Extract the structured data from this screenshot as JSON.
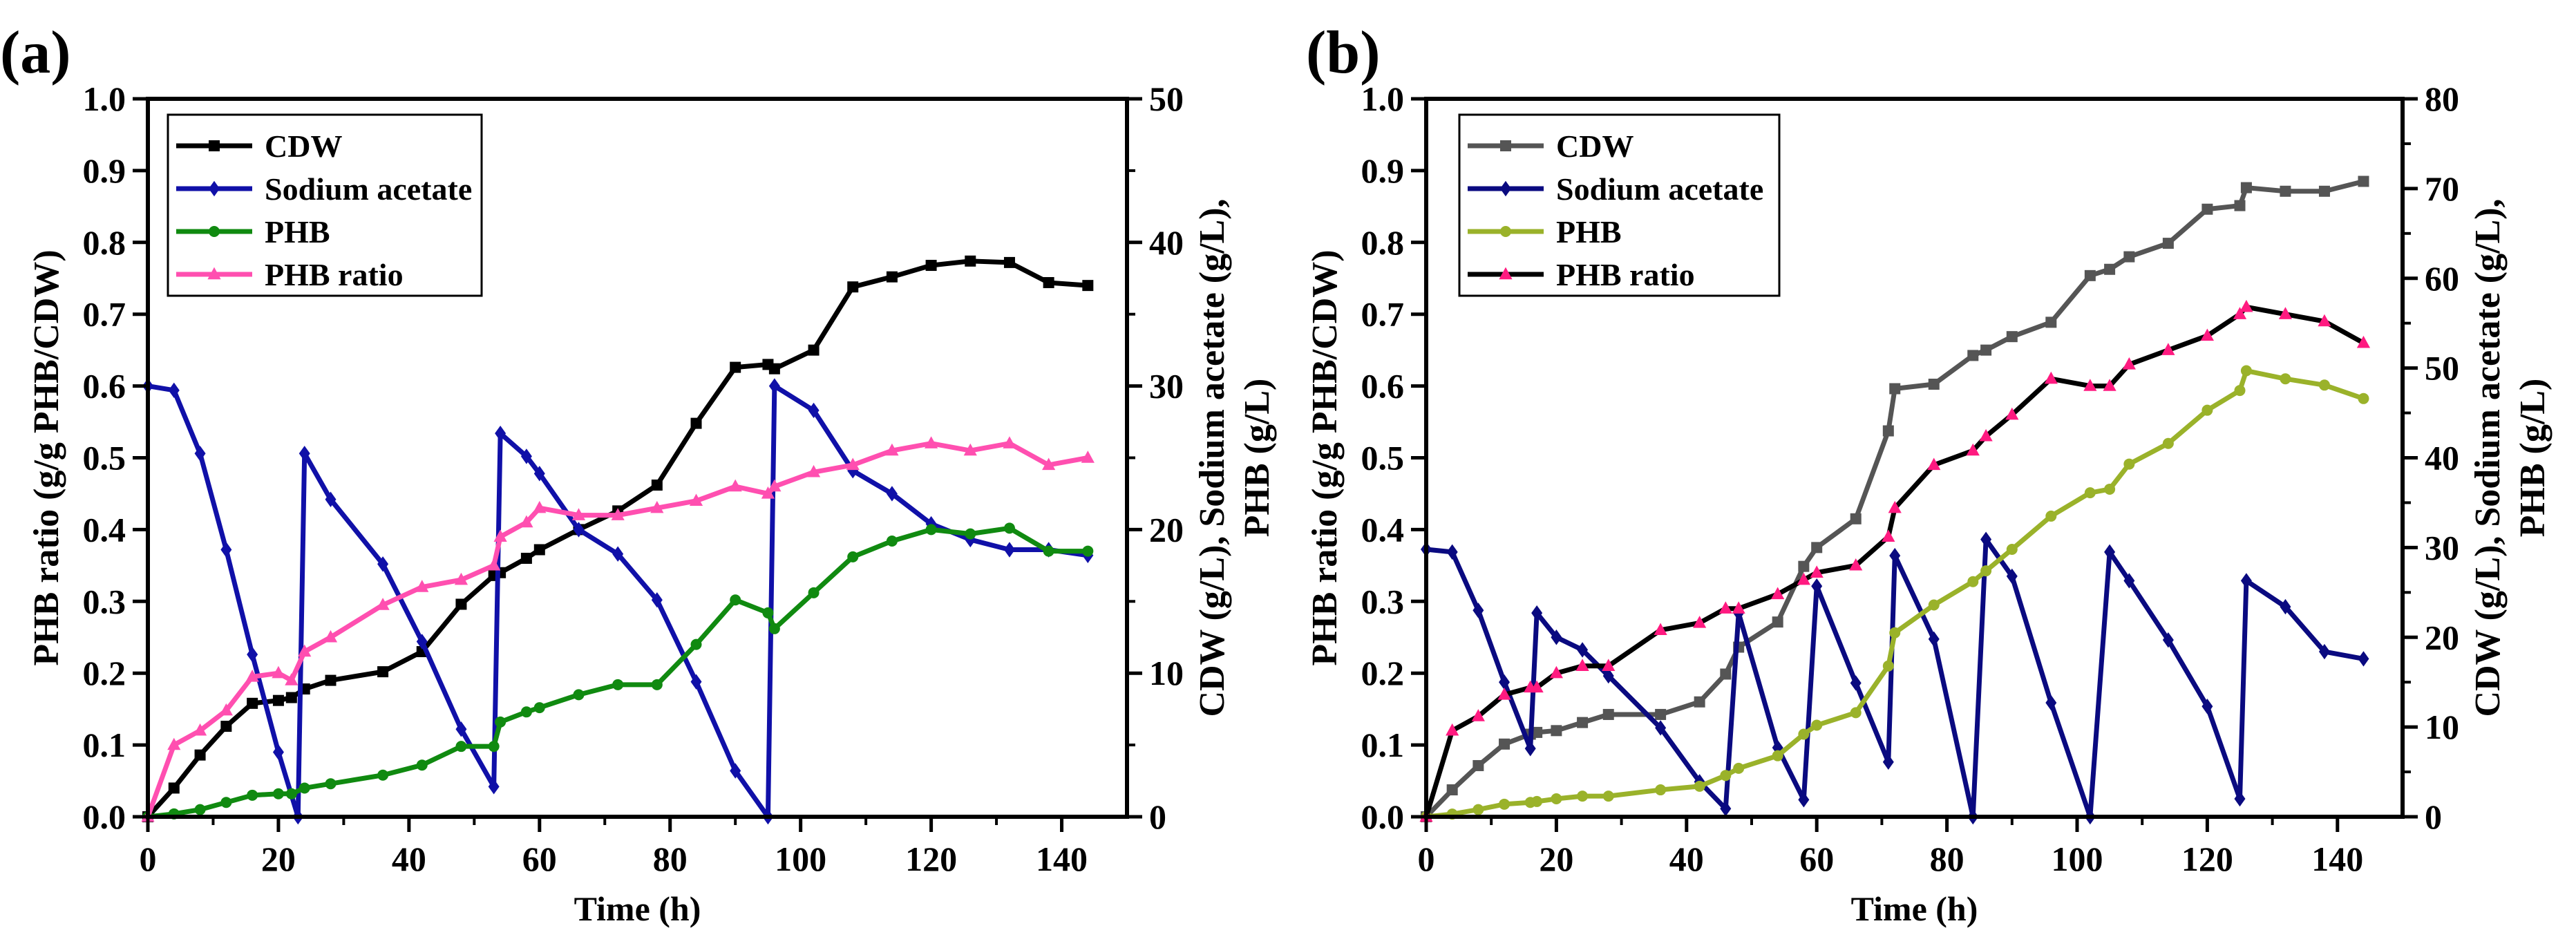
{
  "chart_data": [
    {
      "type": "line",
      "panel_label": "(a)",
      "xlabel": "Time (h)",
      "ylabel_left": "PHB ratio (g/g PHB/CDW)",
      "ylabel_right_line1": "CDW (g/L), Sodium acetate (g/L),",
      "ylabel_right_line2": "PHB (g/L)",
      "xlim": [
        0,
        150
      ],
      "ylim_left": [
        0,
        1.0
      ],
      "ylim_right": [
        0,
        50
      ],
      "xticks": [
        "0",
        "20",
        "40",
        "60",
        "80",
        "100",
        "120",
        "140"
      ],
      "yticks_left": [
        "0.0",
        "0.1",
        "0.2",
        "0.3",
        "0.4",
        "0.5",
        "0.6",
        "0.7",
        "0.8",
        "0.9",
        "1.0"
      ],
      "yticks_right": [
        "0",
        "10",
        "20",
        "30",
        "40",
        "50"
      ],
      "legend_position": "top-left",
      "series": [
        {
          "name": "CDW",
          "axis": "right",
          "color": "#000000",
          "marker": "square",
          "x": [
            0,
            4,
            8,
            12,
            16,
            20,
            22,
            24,
            28,
            36,
            42,
            48,
            53,
            54,
            58,
            60,
            66,
            72,
            78,
            84,
            90,
            95,
            96,
            102,
            108,
            114,
            120,
            126,
            132,
            138,
            144
          ],
          "y": [
            0,
            2,
            4.3,
            6.3,
            7.9,
            8.1,
            8.3,
            8.9,
            9.5,
            10.1,
            11.5,
            14.8,
            16.8,
            17,
            18,
            18.6,
            20,
            21.3,
            23.1,
            27.4,
            31.3,
            31.5,
            31.2,
            32.5,
            36.9,
            37.6,
            38.4,
            38.7,
            38.6,
            37.2,
            37
          ]
        },
        {
          "name": "Sodium acetate",
          "axis": "right",
          "color": "#1010a8",
          "marker": "diamond",
          "x": [
            0,
            4,
            8,
            12,
            16,
            20,
            23,
            24,
            28,
            36,
            42,
            48,
            53,
            54,
            58,
            60,
            66,
            72,
            78,
            84,
            90,
            95,
            96,
            102,
            108,
            114,
            120,
            126,
            132,
            138,
            144
          ],
          "y": [
            30,
            29.7,
            25.3,
            18.6,
            11.3,
            4.5,
            0,
            25.3,
            22.1,
            17.6,
            12.2,
            6.1,
            2.1,
            26.7,
            25.1,
            23.9,
            20,
            18.3,
            15.1,
            9.4,
            3.2,
            0,
            30,
            28.3,
            24.1,
            22.5,
            20.4,
            19.3,
            18.6,
            18.6,
            18.2
          ]
        },
        {
          "name": "PHB",
          "axis": "right",
          "color": "#108a10",
          "marker": "circle",
          "x": [
            0,
            4,
            8,
            12,
            16,
            20,
            22,
            24,
            28,
            36,
            42,
            48,
            53,
            54,
            58,
            60,
            66,
            72,
            78,
            84,
            90,
            95,
            96,
            102,
            108,
            114,
            120,
            126,
            132,
            138,
            144
          ],
          "y": [
            0,
            0.2,
            0.5,
            1,
            1.5,
            1.6,
            1.6,
            2,
            2.3,
            2.9,
            3.6,
            4.9,
            4.9,
            6.6,
            7.3,
            7.6,
            8.5,
            9.2,
            9.2,
            12,
            15.1,
            14.2,
            13.1,
            15.6,
            18.1,
            19.2,
            20,
            19.7,
            20.1,
            18.5,
            18.5
          ]
        },
        {
          "name": "PHB ratio",
          "axis": "left",
          "color": "#ff4fb0",
          "line_color": "#ff4fb0",
          "marker": "triangle",
          "x": [
            0,
            4,
            8,
            12,
            16,
            20,
            22,
            24,
            28,
            36,
            42,
            48,
            53,
            54,
            58,
            60,
            66,
            72,
            78,
            84,
            90,
            95,
            96,
            102,
            108,
            114,
            120,
            126,
            132,
            138,
            144
          ],
          "y": [
            0,
            0.1,
            0.12,
            0.148,
            0.195,
            0.2,
            0.19,
            0.23,
            0.25,
            0.295,
            0.32,
            0.33,
            0.35,
            0.39,
            0.41,
            0.43,
            0.42,
            0.42,
            0.43,
            0.44,
            0.46,
            0.45,
            0.46,
            0.48,
            0.49,
            0.51,
            0.52,
            0.51,
            0.52,
            0.49,
            0.5
          ]
        }
      ]
    },
    {
      "type": "line",
      "panel_label": "(b)",
      "xlabel": "Time (h)",
      "ylabel_left": "PHB ratio (g/g PHB/CDW)",
      "ylabel_right_line1": "CDW (g/L), Sodium acetate (g/L),",
      "ylabel_right_line2": "PHB (g/L)",
      "xlim": [
        0,
        150
      ],
      "ylim_left": [
        0,
        1.0
      ],
      "ylim_right": [
        0,
        80
      ],
      "xticks": [
        "0",
        "20",
        "40",
        "60",
        "80",
        "100",
        "120",
        "140"
      ],
      "yticks_left": [
        "0.0",
        "0.1",
        "0.2",
        "0.3",
        "0.4",
        "0.5",
        "0.6",
        "0.7",
        "0.8",
        "0.9",
        "1.0"
      ],
      "yticks_right": [
        "0",
        "10",
        "20",
        "30",
        "40",
        "50",
        "60",
        "70",
        "80"
      ],
      "legend_position": "top-left",
      "series": [
        {
          "name": "CDW",
          "axis": "right",
          "color": "#555555",
          "marker": "square",
          "x": [
            0,
            4,
            8,
            12,
            16,
            17,
            20,
            24,
            28,
            36,
            42,
            46,
            48,
            54,
            58,
            60,
            66,
            71,
            72,
            78,
            84,
            86,
            90,
            96,
            102,
            105,
            108,
            114,
            120,
            125,
            126,
            132,
            138,
            144
          ],
          "y": [
            0,
            3,
            5.7,
            8.1,
            9.2,
            9.4,
            9.6,
            10.5,
            11.4,
            11.4,
            12.8,
            15.9,
            18.9,
            21.7,
            27.9,
            30,
            33.2,
            43,
            47.7,
            48.2,
            51.4,
            52,
            53.5,
            55.1,
            60.3,
            61,
            62.4,
            63.9,
            67.7,
            68.1,
            70.1,
            69.7,
            69.7,
            70.8
          ]
        },
        {
          "name": "Sodium acetate",
          "axis": "right",
          "color": "#0a0a80",
          "marker": "diamond",
          "x": [
            0,
            4,
            8,
            12,
            16,
            17,
            20,
            24,
            28,
            36,
            42,
            46,
            48,
            54,
            58,
            60,
            66,
            71,
            72,
            78,
            84,
            86,
            90,
            96,
            102,
            105,
            108,
            114,
            120,
            125,
            126,
            132,
            138,
            144
          ],
          "y": [
            29.8,
            29.5,
            23,
            15,
            7.6,
            22.7,
            20,
            18.6,
            15.7,
            9.9,
            3.9,
            0.9,
            22.7,
            7.7,
            1.9,
            25.7,
            14.9,
            6.1,
            29.1,
            19.8,
            0,
            30.9,
            26.8,
            12.7,
            0,
            29.5,
            26.3,
            19.7,
            12.3,
            2,
            26.3,
            23.4,
            18.4,
            17.6
          ]
        },
        {
          "name": "PHB",
          "axis": "right",
          "color": "#9ab22a",
          "marker": "circle",
          "x": [
            0,
            4,
            8,
            12,
            16,
            17,
            20,
            24,
            28,
            36,
            42,
            46,
            48,
            54,
            58,
            60,
            66,
            71,
            72,
            78,
            84,
            86,
            90,
            96,
            102,
            105,
            108,
            114,
            120,
            125,
            126,
            132,
            138,
            144
          ],
          "y": [
            0,
            0.3,
            0.8,
            1.4,
            1.6,
            1.7,
            2,
            2.3,
            2.3,
            3,
            3.4,
            4.6,
            5.4,
            6.8,
            9.2,
            10.2,
            11.6,
            16.8,
            20.5,
            23.6,
            26.2,
            27.4,
            29.8,
            33.5,
            36.1,
            36.5,
            39.3,
            41.6,
            45.3,
            47.5,
            49.7,
            48.8,
            48.1,
            46.6
          ]
        },
        {
          "name": "PHB ratio",
          "axis": "left",
          "color": "#ff1a80",
          "line_color": "#000000",
          "marker": "triangle",
          "x": [
            0,
            4,
            8,
            12,
            16,
            17,
            20,
            24,
            28,
            36,
            42,
            46,
            48,
            54,
            58,
            60,
            66,
            71,
            72,
            78,
            84,
            86,
            90,
            96,
            102,
            105,
            108,
            114,
            120,
            125,
            126,
            132,
            138,
            144
          ],
          "y": [
            0,
            0.12,
            0.14,
            0.17,
            0.18,
            0.18,
            0.2,
            0.21,
            0.21,
            0.26,
            0.27,
            0.29,
            0.29,
            0.31,
            0.33,
            0.34,
            0.35,
            0.39,
            0.43,
            0.49,
            0.51,
            0.53,
            0.56,
            0.61,
            0.6,
            0.6,
            0.63,
            0.65,
            0.67,
            0.7,
            0.71,
            0.7,
            0.69,
            0.66
          ]
        }
      ]
    }
  ]
}
